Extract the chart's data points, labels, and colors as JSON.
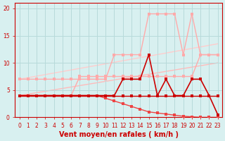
{
  "xlabel": "Vent moyen/en rafales ( km/h )",
  "x": [
    0,
    1,
    2,
    3,
    4,
    5,
    6,
    7,
    8,
    9,
    10,
    11,
    12,
    13,
    14,
    15,
    16,
    17,
    18,
    19,
    20,
    21,
    22,
    23
  ],
  "bg_color": "#d8f0f0",
  "grid_color": "#b8dada",
  "line_flat": {
    "y": [
      4,
      4,
      4,
      4,
      4,
      4,
      4,
      4,
      4,
      4,
      4,
      4,
      4,
      4,
      4,
      4,
      4,
      4,
      4,
      4,
      4,
      4,
      4,
      4
    ],
    "color": "#cc0000",
    "marker": "s",
    "markersize": 2.5,
    "linewidth": 1.0
  },
  "line_decr": {
    "y": [
      4,
      4,
      4,
      4,
      4,
      4,
      4,
      4,
      4,
      4,
      3.5,
      3.0,
      2.5,
      2.0,
      1.5,
      1.0,
      0.8,
      0.6,
      0.4,
      0.2,
      0.1,
      0.0,
      0.0,
      0.0
    ],
    "color": "#ee4444",
    "marker": "s",
    "markersize": 2.5,
    "linewidth": 1.0
  },
  "line_pink_lo": {
    "y": [
      4,
      4,
      4,
      4,
      4,
      4,
      4,
      7.5,
      7.5,
      7.5,
      7.5,
      7.5,
      7.5,
      7.5,
      7.5,
      7.5,
      7.5,
      7.5,
      7.5,
      7.5,
      7.5,
      11.5,
      11.5,
      11.5
    ],
    "color": "#ffaaaa",
    "marker": "s",
    "markersize": 2.5,
    "linewidth": 1.0
  },
  "line_pink_hi": {
    "y": [
      7,
      7,
      7,
      7,
      7,
      7,
      7,
      7,
      7,
      7,
      7,
      11.5,
      11.5,
      11.5,
      11.5,
      19,
      19,
      19,
      19,
      11.5,
      19,
      11.5,
      11.5,
      11.5
    ],
    "color": "#ffaaaa",
    "marker": "s",
    "markersize": 2.5,
    "linewidth": 1.0
  },
  "line_dark_wind": {
    "y": [
      4,
      4,
      4,
      4,
      4,
      4,
      4,
      4,
      4,
      4,
      4,
      4,
      7,
      7,
      7,
      11.5,
      4,
      7,
      4,
      4,
      7,
      7,
      4,
      0.5
    ],
    "color": "#cc0000",
    "marker": "s",
    "markersize": 2.5,
    "linewidth": 1.2
  },
  "line_trend_lo": {
    "x0": 0,
    "x1": 23,
    "y0": 4.0,
    "y1": 10.0,
    "color": "#ffbbbb",
    "linewidth": 1.0
  },
  "line_trend_hi": {
    "x0": 0,
    "x1": 23,
    "y0": 7.0,
    "y1": 13.5,
    "color": "#ffcccc",
    "linewidth": 1.0
  },
  "ylim": [
    0,
    21
  ],
  "xlim": [
    -0.5,
    23.5
  ],
  "yticks": [
    0,
    5,
    10,
    15,
    20
  ],
  "xticks": [
    0,
    1,
    2,
    3,
    4,
    5,
    6,
    7,
    8,
    9,
    10,
    11,
    12,
    13,
    14,
    15,
    16,
    17,
    18,
    19,
    20,
    21,
    22,
    23
  ],
  "tick_color": "#cc0000",
  "tick_fontsize": 5.5,
  "xlabel_fontsize": 7,
  "xlabel_color": "#cc0000",
  "xlabel_bold": true
}
